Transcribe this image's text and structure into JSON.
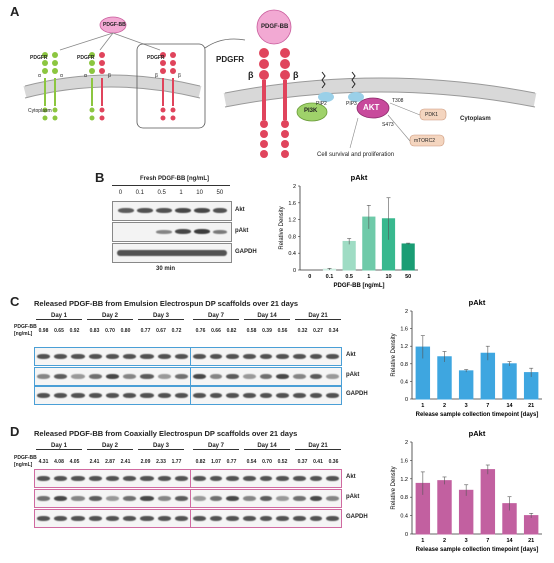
{
  "panelA": {
    "letter": "A",
    "ligand": "PDGF-BB",
    "receptor_labels": [
      "PDGFR",
      "PDGFR",
      "PDGFR",
      "PDGFR"
    ],
    "subunits": {
      "alpha": "α",
      "beta": "β"
    },
    "cytoplasm": "Cytoplasm",
    "pip2": "PIP2",
    "pip3": "PIP3",
    "pi3k": "PI3K",
    "akt": "AKT",
    "t308": "T308",
    "s473": "S473",
    "pdk1": "PDK1",
    "mtorc2": "mTORC2",
    "outcome": "Cell survival and proliferation"
  },
  "panelB": {
    "letter": "B",
    "header": "Fresh PDGF-BB [ng/mL]",
    "lanes": [
      "0",
      "0.1",
      "0.5",
      "1",
      "10",
      "50"
    ],
    "rows": [
      "Akt",
      "pAkt",
      "GAPDH"
    ],
    "time": "30 min"
  },
  "panelC": {
    "letter": "C",
    "title": "Released PDGF-BB from Emulsion Electrospun DP scaffolds over 21 days",
    "conc_label": [
      "PDGF-BB",
      "[ng/mL]"
    ],
    "days": [
      "Day 1",
      "Day 2",
      "Day 3",
      "Day 7",
      "Day 14",
      "Day 21"
    ],
    "values": [
      "0.98",
      "0.65",
      "0.92",
      "0.83",
      "0.70",
      "0.80",
      "0.77",
      "0.67",
      "0.72",
      "0.76",
      "0.66",
      "0.82",
      "0.58",
      "0.39",
      "0.56",
      "0.32",
      "0.27",
      "0.34"
    ],
    "rows": [
      "Akt",
      "pAkt",
      "GAPDH"
    ]
  },
  "panelD": {
    "letter": "D",
    "title": "Released PDGF-BB from Coaxially Electrospun DP scaffolds over 21 days",
    "conc_label": [
      "PDGF-BB",
      "[ng/mL]"
    ],
    "days": [
      "Day 1",
      "Day 2",
      "Day 3",
      "Day 7",
      "Day 14",
      "Day 21"
    ],
    "values": [
      "4.31",
      "4.08",
      "4.05",
      "2.41",
      "2.87",
      "2.41",
      "2.09",
      "2.33",
      "1.77",
      "0.82",
      "1.07",
      "0.77",
      "0.54",
      "0.70",
      "0.52",
      "0.37",
      "0.41",
      "0.36"
    ],
    "rows": [
      "Akt",
      "pAkt",
      "GAPDH"
    ]
  },
  "chart_data": [
    {
      "type": "bar",
      "title": "pAkt",
      "xlabel": "PDGF-BB [ng/mL]",
      "ylabel": "Relative Density",
      "categories": [
        "0",
        "0.1",
        "0.5",
        "1",
        "10",
        "50"
      ],
      "values": [
        0.0,
        0.02,
        0.68,
        1.26,
        1.22,
        0.62
      ],
      "errors": [
        0.0,
        0.02,
        0.07,
        0.28,
        0.5,
        0.02
      ],
      "ylim": [
        0,
        2
      ],
      "yticks": [
        "0",
        "0.4",
        "0.8",
        "1.2",
        "1.6",
        "2"
      ],
      "colors": [
        "#e6f4ef",
        "#cdeee1",
        "#9fdcc4",
        "#6fcaa9",
        "#38b88e",
        "#1a9d74"
      ]
    },
    {
      "type": "bar",
      "title": "pAkt",
      "xlabel": "Release sample collection timepoint [days]",
      "ylabel": "Relative Density",
      "categories": [
        "1",
        "2",
        "3",
        "7",
        "14",
        "21"
      ],
      "values": [
        1.18,
        0.96,
        0.64,
        1.04,
        0.8,
        0.6
      ],
      "errors": [
        0.26,
        0.12,
        0.03,
        0.16,
        0.05,
        0.1
      ],
      "ylim": [
        0,
        2
      ],
      "yticks": [
        "0",
        "0.4",
        "0.8",
        "1.2",
        "1.6",
        "2"
      ],
      "colors": [
        "#3ea6e0"
      ]
    },
    {
      "type": "bar",
      "title": "pAkt",
      "xlabel": "Release sample collection timepoint [days]",
      "ylabel": "Relative Density",
      "categories": [
        "1",
        "2",
        "3",
        "7",
        "14",
        "21"
      ],
      "values": [
        1.1,
        1.16,
        0.95,
        1.4,
        0.66,
        0.4
      ],
      "errors": [
        0.25,
        0.08,
        0.12,
        0.1,
        0.15,
        0.05
      ],
      "ylim": [
        0,
        2
      ],
      "yticks": [
        "0",
        "0.4",
        "0.8",
        "1.2",
        "1.6",
        "2"
      ],
      "colors": [
        "#c260a0"
      ]
    }
  ]
}
